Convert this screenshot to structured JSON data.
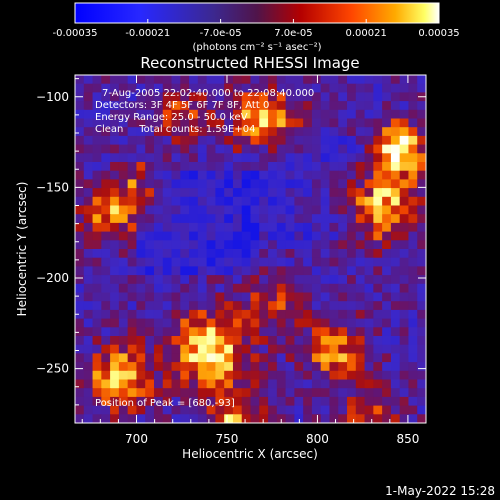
{
  "chart_data": {
    "type": "heatmap",
    "title": "Reconstructed RHESSI Image",
    "xlabel": "Heliocentric X (arcsec)",
    "ylabel": "Heliocentric Y (arcsec)",
    "xlim": [
      666,
      860
    ],
    "ylim": [
      -280,
      -88
    ],
    "x_ticks": [
      700,
      750,
      800,
      850
    ],
    "y_ticks": [
      -100,
      -150,
      -200,
      -250
    ],
    "colorbar": {
      "range": [
        -0.00035,
        0.00035
      ],
      "ticks": [
        "-0.00035",
        "-0.00021",
        "-7.0e-05",
        "7.0e-05",
        "0.00021",
        "0.00035"
      ],
      "unit_label": "(photons cm⁻² s⁻¹ asec⁻²)"
    },
    "annotations": [
      "7-Aug-2005 22:02:40.000 to 22:08:40.000",
      "Detectors: 3F 4F 5F 6F 7F 8F, Att 0",
      "Energy Range: 25.0 - 50.0 keV",
      "Clean     Total counts: 1.59E+04"
    ],
    "peak_label": "Position of Peak = [680,-93]",
    "colors": {
      "background": "#000000",
      "negative": "#1e1eff",
      "zero": "#5a1e8c",
      "low_positive": "#c81414",
      "mid_positive": "#ff7800",
      "high_positive": "#ffffc8"
    }
  },
  "footer": {
    "date": "1-May-2022 15:28"
  }
}
